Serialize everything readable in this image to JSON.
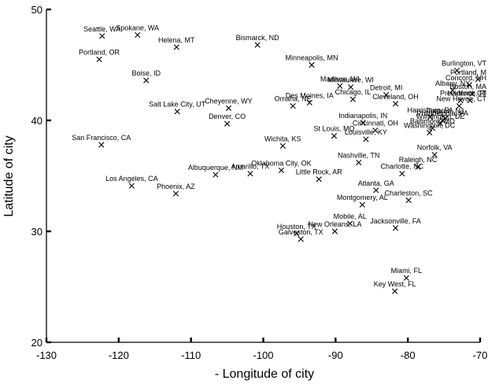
{
  "chart_data": {
    "type": "scatter",
    "title": "",
    "xlabel": "- Longitude of city",
    "ylabel": "Latitude of city",
    "xlim": [
      -130,
      -70
    ],
    "ylim": [
      20,
      50
    ],
    "xticks": [
      -130,
      -120,
      -110,
      -100,
      -90,
      -80,
      -70
    ],
    "yticks": [
      20,
      30,
      40,
      50
    ],
    "grid": false,
    "marker": "x",
    "points": [
      {
        "label": "Seattle, WA",
        "x": -122.3,
        "y": 47.6
      },
      {
        "label": "Spokane, WA",
        "x": -117.4,
        "y": 47.7
      },
      {
        "label": "Helena, MT",
        "x": -112.0,
        "y": 46.6
      },
      {
        "label": "Bismarck, ND",
        "x": -100.8,
        "y": 46.8
      },
      {
        "label": "Portland, OR",
        "x": -122.7,
        "y": 45.5
      },
      {
        "label": "Minneapolis, MN",
        "x": -93.3,
        "y": 45.0
      },
      {
        "label": "Boise, ID",
        "x": -116.2,
        "y": 43.6
      },
      {
        "label": "Salt Lake City, UT",
        "x": -111.9,
        "y": 40.8
      },
      {
        "label": "Cheyenne, WY",
        "x": -104.8,
        "y": 41.1
      },
      {
        "label": "Denver, CO",
        "x": -105.0,
        "y": 39.7
      },
      {
        "label": "Omaha, NE",
        "x": -95.9,
        "y": 41.3
      },
      {
        "label": "Des Moines, IA",
        "x": -93.6,
        "y": 41.6
      },
      {
        "label": "Madison, WI",
        "x": -89.4,
        "y": 43.1
      },
      {
        "label": "Milwaukee, WI",
        "x": -87.9,
        "y": 43.0
      },
      {
        "label": "Chicago, IL",
        "x": -87.6,
        "y": 41.9
      },
      {
        "label": "Detroit, MI",
        "x": -83.0,
        "y": 42.3
      },
      {
        "label": "Cleveland, OH",
        "x": -81.7,
        "y": 41.5
      },
      {
        "label": "Burlington, VT",
        "x": -73.2,
        "y": 44.5
      },
      {
        "label": "Portland, M",
        "x": -70.3,
        "y": 43.7
      },
      {
        "label": "Concord, NH",
        "x": -71.5,
        "y": 43.2
      },
      {
        "label": "Albany, NY",
        "x": -73.8,
        "y": 42.7
      },
      {
        "label": "Boston, MA",
        "x": -71.1,
        "y": 42.4
      },
      {
        "label": "New Haven, CT",
        "x": -72.9,
        "y": 41.3
      },
      {
        "label": "Hartford, CT",
        "x": -72.7,
        "y": 41.8
      },
      {
        "label": "Providence, RI",
        "x": -71.4,
        "y": 41.8
      },
      {
        "label": "Harrisburg, PA",
        "x": -76.9,
        "y": 40.3
      },
      {
        "label": "Philadelphia, PA",
        "x": -75.2,
        "y": 40.0
      },
      {
        "label": "Wilmington, DE",
        "x": -75.5,
        "y": 39.7
      },
      {
        "label": "Trenton, NJ",
        "x": -74.8,
        "y": 40.2
      },
      {
        "label": "Baltimore, MD",
        "x": -76.6,
        "y": 39.3
      },
      {
        "label": "Washington, DC",
        "x": -77.0,
        "y": 38.9
      },
      {
        "label": "San Francisco, CA",
        "x": -122.4,
        "y": 37.8
      },
      {
        "label": "Wichita, KS",
        "x": -97.3,
        "y": 37.7
      },
      {
        "label": "St Louis, MO",
        "x": -90.2,
        "y": 38.6
      },
      {
        "label": "Indianapolis, IN",
        "x": -86.2,
        "y": 39.8
      },
      {
        "label": "Cincinnati, OH",
        "x": -84.5,
        "y": 39.1
      },
      {
        "label": "Louisville, KY",
        "x": -85.8,
        "y": 38.3
      },
      {
        "label": "Nashville, TN",
        "x": -86.8,
        "y": 36.2
      },
      {
        "label": "Norfolk, VA",
        "x": -76.3,
        "y": 36.9
      },
      {
        "label": "Raleigh, NC",
        "x": -78.6,
        "y": 35.8
      },
      {
        "label": "Charlotte, NC",
        "x": -80.8,
        "y": 35.2
      },
      {
        "label": "Los Angeles, CA",
        "x": -118.2,
        "y": 34.1
      },
      {
        "label": "Albuquerque, NM",
        "x": -106.6,
        "y": 35.1
      },
      {
        "label": "Amarillo, TX",
        "x": -101.8,
        "y": 35.2
      },
      {
        "label": "Oklahoma City, OK",
        "x": -97.5,
        "y": 35.5
      },
      {
        "label": "Little Rock, AR",
        "x": -92.3,
        "y": 34.7
      },
      {
        "label": "Phoenix, AZ",
        "x": -112.1,
        "y": 33.4
      },
      {
        "label": "Atlanta, GA",
        "x": -84.4,
        "y": 33.7
      },
      {
        "label": "Charleston, SC",
        "x": -79.9,
        "y": 32.8
      },
      {
        "label": "Montgomery, AL",
        "x": -86.3,
        "y": 32.4
      },
      {
        "label": "Mobile, AL",
        "x": -88.0,
        "y": 30.7
      },
      {
        "label": "Jacksonville, FA",
        "x": -81.7,
        "y": 30.3
      },
      {
        "label": "New Orleans, LA",
        "x": -90.1,
        "y": 30.0
      },
      {
        "label": "Houston, TX",
        "x": -95.4,
        "y": 29.8
      },
      {
        "label": "Galveston, TX",
        "x": -94.8,
        "y": 29.3
      },
      {
        "label": "Miami, FL",
        "x": -80.2,
        "y": 25.8
      },
      {
        "label": "Key West, FL",
        "x": -81.8,
        "y": 24.6
      }
    ]
  }
}
